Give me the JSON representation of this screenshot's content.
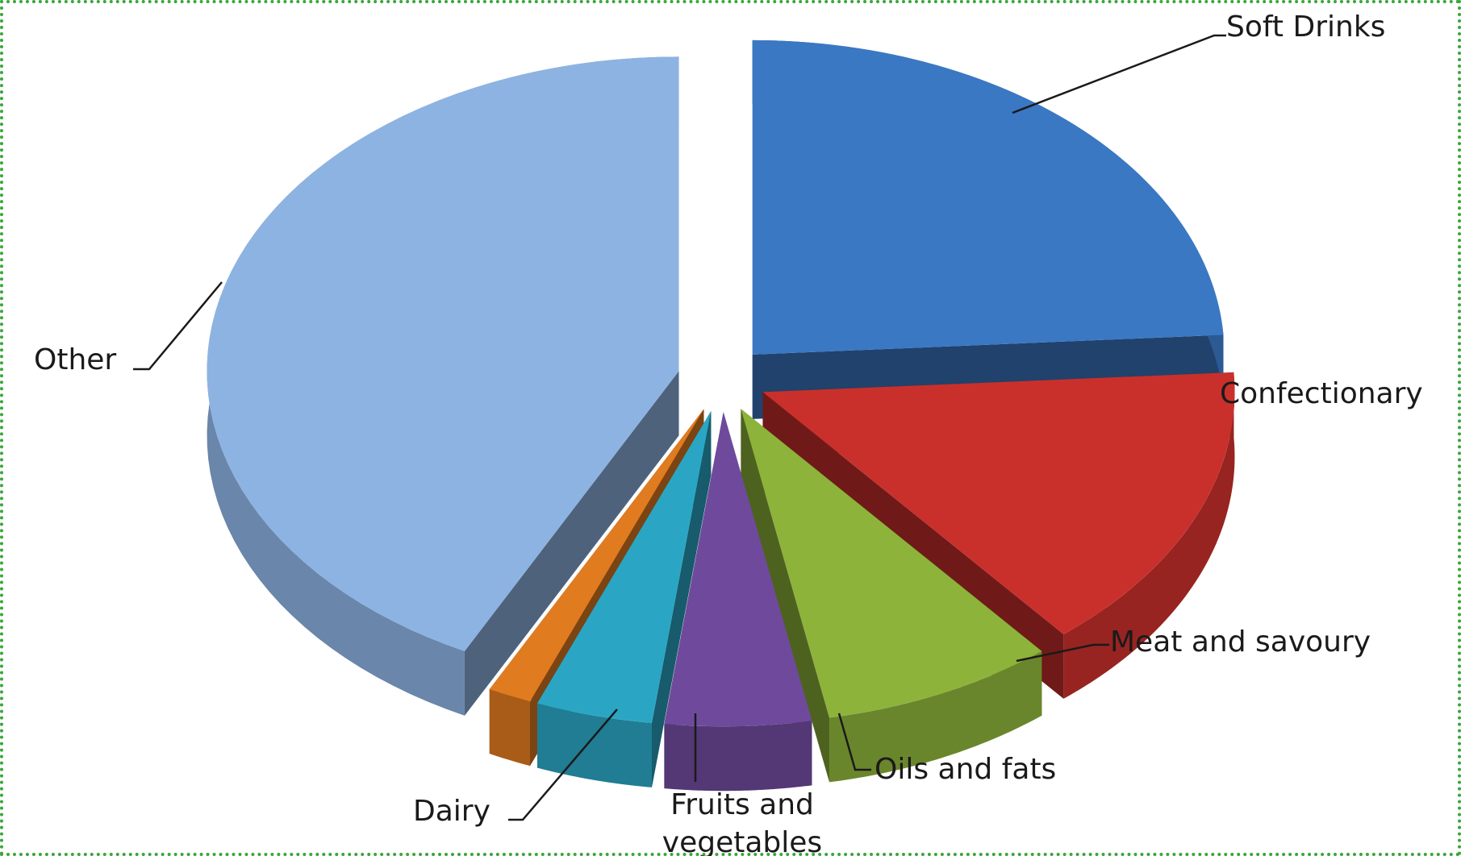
{
  "chart_data": {
    "type": "pie",
    "title": "",
    "exploded": true,
    "three_d": true,
    "slices": [
      {
        "name": "Soft Drinks",
        "value": 24,
        "color": "#3a78c4"
      },
      {
        "name": "Confectionary",
        "value": 15,
        "color": "#c9302c"
      },
      {
        "name": "Meat and savoury",
        "value": 8,
        "color": "#8db33a"
      },
      {
        "name": "Oils and fats",
        "value": 5,
        "color": "#6f4a9c"
      },
      {
        "name": "Fruits and vegetables",
        "value": 4,
        "color": "#2aa6c4"
      },
      {
        "name": "Dairy",
        "value": 1.5,
        "color": "#e07b20"
      },
      {
        "name": "Other",
        "value": 42.5,
        "color": "#8db3e2"
      }
    ],
    "labels": {
      "soft_drinks": "Soft Drinks",
      "confectionary": "Confectionary",
      "meat": "Meat and savoury",
      "oils": "Oils and fats",
      "fruits_line1": "Fruits and",
      "fruits_line2": "vegetables",
      "dairy": "Dairy",
      "other": "Other"
    }
  }
}
